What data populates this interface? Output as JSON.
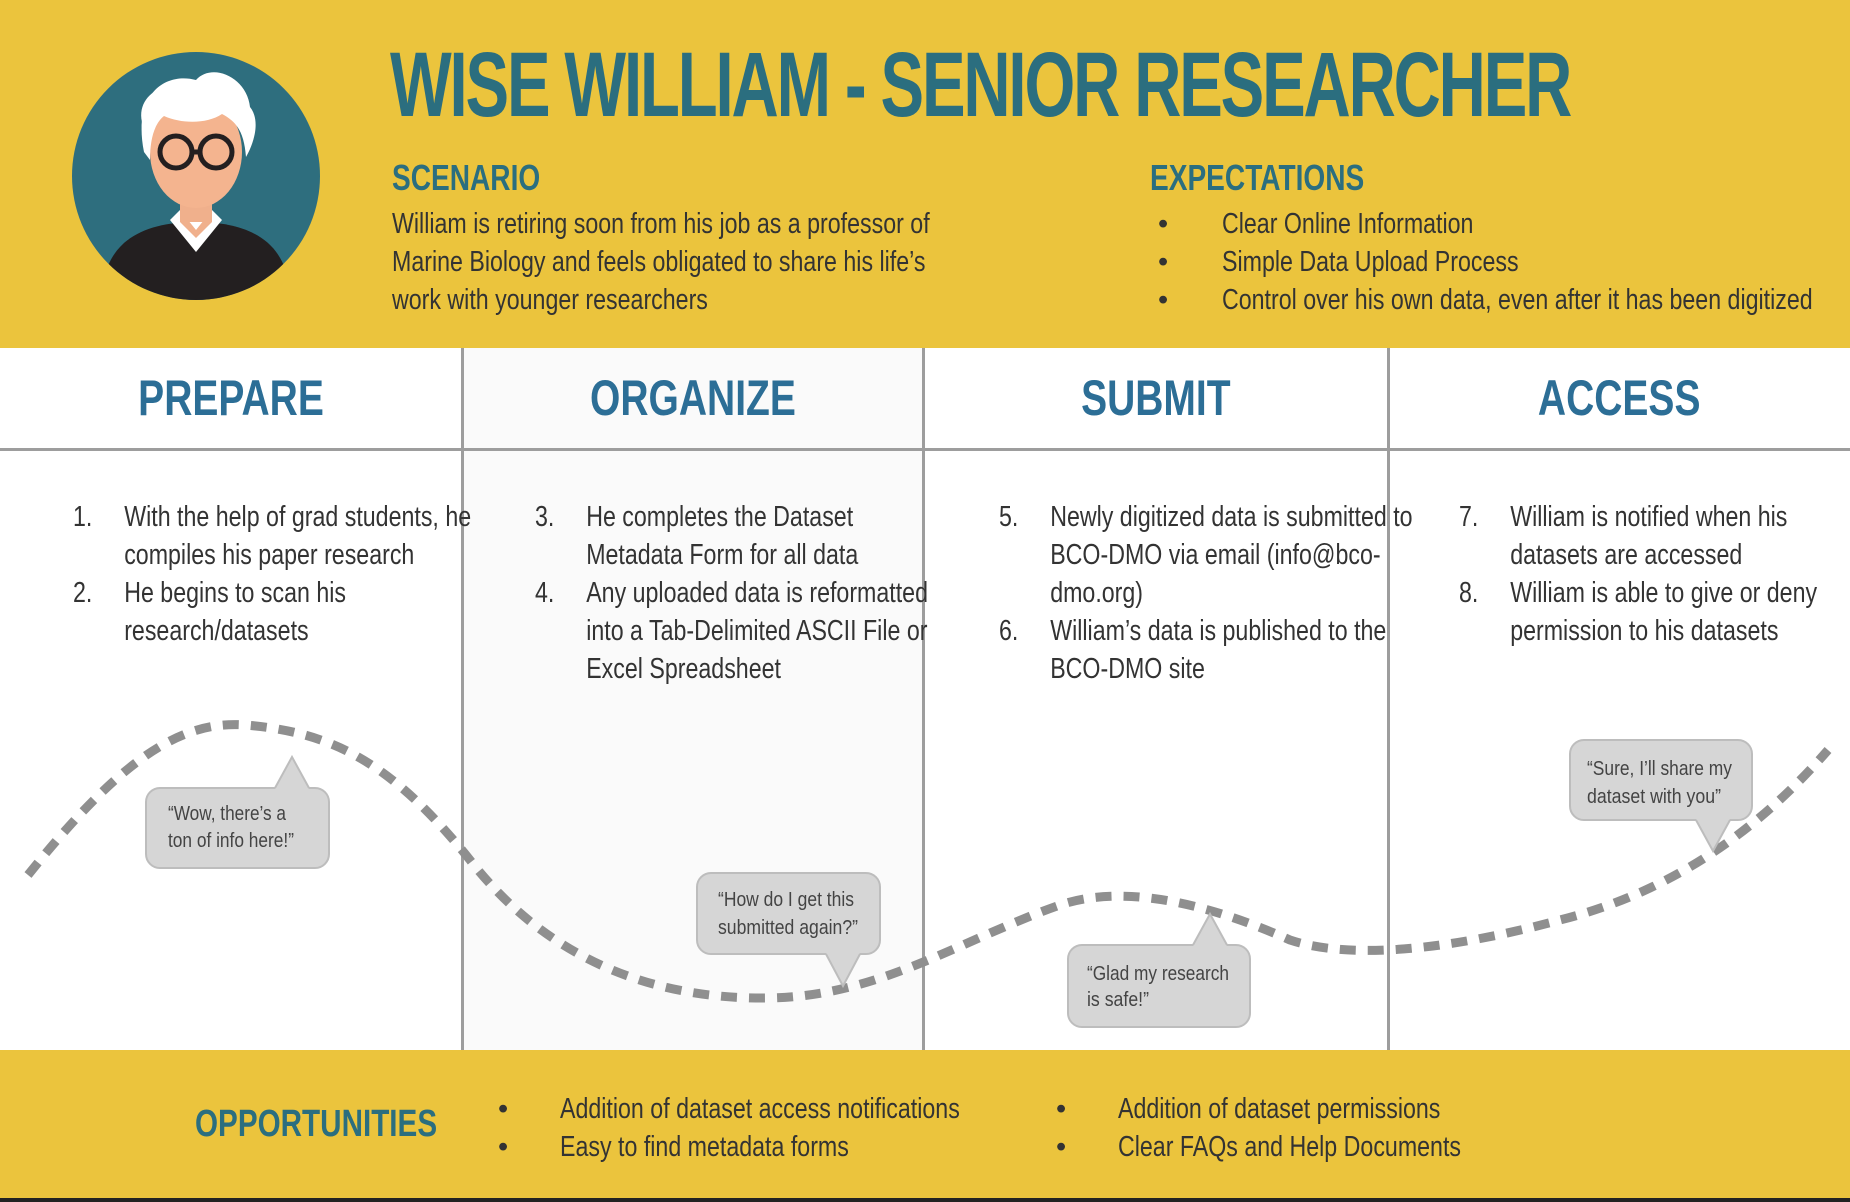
{
  "title": "WISE WILLIAM - SENIOR RESEARCHER",
  "scenario": {
    "heading": "SCENARIO",
    "text": "William is retiring soon from his job as a professor of Marine Biology and feels obligated to share his life’s work with younger researchers"
  },
  "expectations": {
    "heading": "EXPECTATIONS",
    "items": [
      "Clear Online Information",
      "Simple Data Upload Process",
      "Control over his own data, even after it has been digitized"
    ]
  },
  "stages": [
    {
      "name": "PREPARE",
      "steps": [
        {
          "num": "1.",
          "text": "With the help of grad students, he compiles his paper research"
        },
        {
          "num": "2.",
          "text": "He begins to scan his research/datasets"
        }
      ],
      "quote": [
        "“Wow, there’s a",
        "ton of info here!”"
      ]
    },
    {
      "name": "ORGANIZE",
      "steps": [
        {
          "num": "3.",
          "text": "He completes the Dataset Metadata Form for all data"
        },
        {
          "num": "4.",
          "text": "Any uploaded data is reformatted into a Tab-Delimited ASCII File or Excel Spreadsheet"
        }
      ],
      "quote": [
        "“How do I get this",
        "submitted again?”"
      ]
    },
    {
      "name": "SUBMIT",
      "steps": [
        {
          "num": "5.",
          "text": "Newly digitized data is submitted to BCO-DMO via email (info@bco-dmo.org)"
        },
        {
          "num": "6.",
          "text": "William’s data is published to the BCO-DMO site"
        }
      ],
      "quote": [
        "“Glad my research",
        "is safe!”"
      ]
    },
    {
      "name": "ACCESS",
      "steps": [
        {
          "num": "7.",
          "text": "William is notified when his datasets are accessed"
        },
        {
          "num": "8.",
          "text": "William is able to give or deny permission to his datasets"
        }
      ],
      "quote": [
        "“Sure, I’ll share my",
        "dataset with you”"
      ]
    }
  ],
  "opportunities": {
    "heading": "OPPORTUNITIES",
    "col1": [
      "Addition of dataset access notifications",
      "Easy to find metadata forms"
    ],
    "col2": [
      "Addition of dataset permissions",
      "Clear FAQs and Help Documents"
    ]
  },
  "bullet": "•",
  "colors": {
    "band": "#ebc43d",
    "title": "#2b6e7f",
    "stage_heading": "#2c6e96",
    "avatar_circle": "#2e6e7e",
    "bubble": "#d6d6d6",
    "curve": "#8f8f8f"
  },
  "icons": [
    "avatar-illustration",
    "speech-bubble"
  ]
}
